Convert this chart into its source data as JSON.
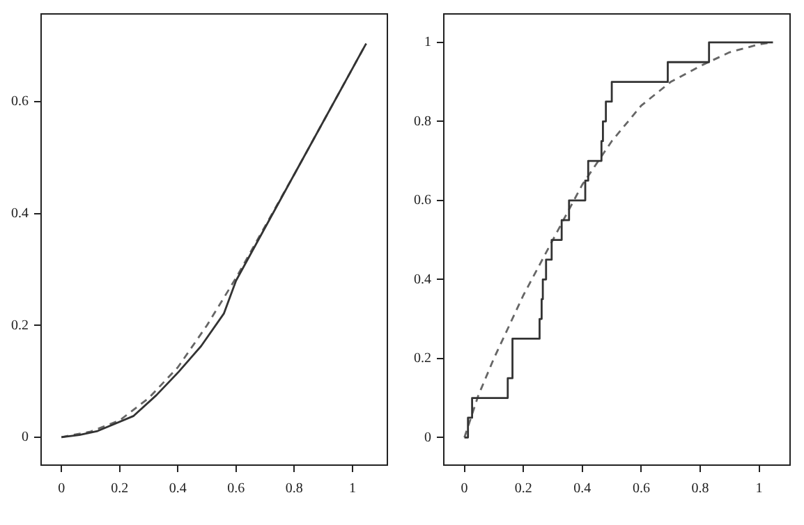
{
  "chart_data": [
    {
      "type": "line",
      "xlim": [
        -0.07,
        1.12
      ],
      "ylim": [
        -0.05,
        0.757
      ],
      "xticks": [
        0,
        0.2,
        0.4,
        0.6,
        0.8,
        1
      ],
      "yticks": [
        0,
        0.2,
        0.4,
        0.6
      ],
      "series": [
        {
          "type": "line",
          "color": "#333333",
          "line_style": "solid",
          "x": [
            0,
            0.062,
            0.124,
            0.248,
            0.326,
            0.403,
            0.48,
            0.558,
            0.6,
            0.76,
            0.8,
            1.047
          ],
          "values": [
            0,
            0.004,
            0.011,
            0.038,
            0.075,
            0.117,
            0.163,
            0.221,
            0.28,
            0.432,
            0.47,
            0.704
          ]
        },
        {
          "type": "line",
          "color": "#666666",
          "line_style": "dashed",
          "x": [
            0,
            0.1,
            0.2,
            0.3,
            0.4,
            0.5,
            0.6,
            0.8,
            1.047
          ],
          "values": [
            0,
            0.01,
            0.03,
            0.07,
            0.125,
            0.2,
            0.285,
            0.47,
            0.704
          ]
        }
      ]
    },
    {
      "type": "line",
      "xlim": [
        -0.07,
        1.105
      ],
      "ylim": [
        -0.07,
        1.072
      ],
      "xticks": [
        0,
        0.2,
        0.4,
        0.6,
        0.8,
        1
      ],
      "yticks": [
        0,
        0.2,
        0.4,
        0.6,
        0.8,
        1
      ],
      "series": [
        {
          "type": "step",
          "color": "#333333",
          "line_style": "solid",
          "x": [
            0,
            0.012,
            0.02,
            0.026,
            0.147,
            0.163,
            0.255,
            0.262,
            0.266,
            0.27,
            0.277,
            0.296,
            0.33,
            0.355,
            0.41,
            0.415,
            0.42,
            0.465,
            0.468,
            0.47,
            0.48,
            0.5,
            0.69,
            0.83,
            1.047
          ],
          "values": [
            0,
            0.05,
            0.05,
            0.1,
            0.15,
            0.25,
            0.3,
            0.35,
            0.4,
            0.4,
            0.45,
            0.5,
            0.55,
            0.6,
            0.65,
            0.65,
            0.7,
            0.75,
            0.75,
            0.8,
            0.85,
            0.9,
            0.95,
            1,
            1
          ]
        },
        {
          "type": "line",
          "color": "#666666",
          "line_style": "dashed",
          "x": [
            0,
            0.047,
            0.1,
            0.2,
            0.3,
            0.4,
            0.5,
            0.6,
            0.7,
            0.8,
            0.9,
            1,
            1.047
          ],
          "values": [
            0,
            0.106,
            0.2,
            0.36,
            0.5,
            0.64,
            0.75,
            0.84,
            0.9,
            0.94,
            0.975,
            0.995,
            1
          ]
        }
      ]
    }
  ]
}
